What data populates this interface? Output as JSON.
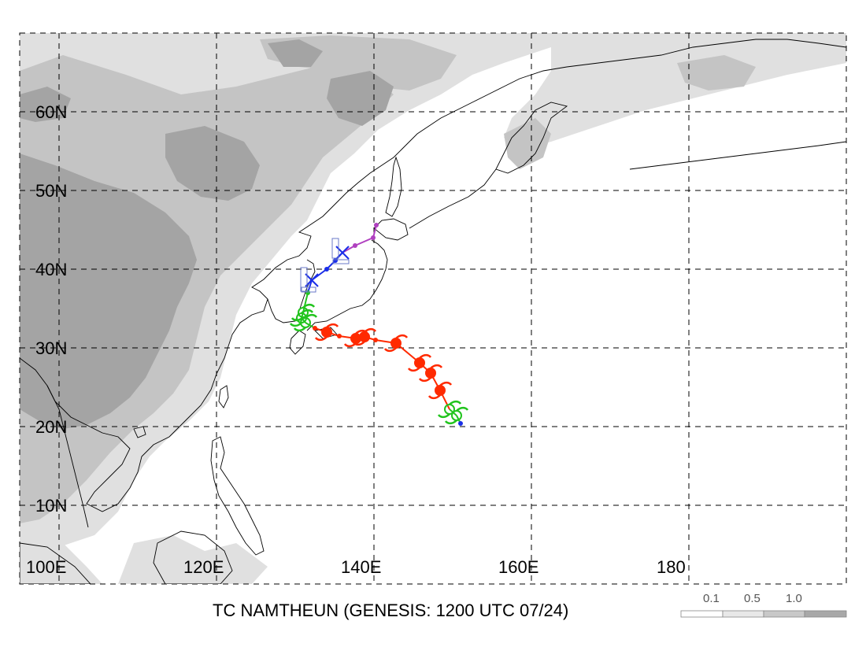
{
  "title": "TC NAMTHEUN (GENESIS: 1200 UTC 07/24)",
  "lat_labels": [
    "60N",
    "50N",
    "40N",
    "30N",
    "20N",
    "10N"
  ],
  "lon_labels": [
    "100E",
    "120E",
    "140E",
    "160E",
    "180"
  ],
  "legend": {
    "labels": [
      "0.1",
      "0.5",
      "1.0"
    ],
    "colors": [
      "#ffffff",
      "#e8e8e8",
      "#c8c8c8",
      "#a8a8a8"
    ]
  },
  "colors": {
    "track_blue": "#1a2ee8",
    "track_red": "#ff2a00",
    "track_green": "#22c41e",
    "track_purple": "#b040c0",
    "shade_light": "#e0e0e0",
    "shade_mid": "#c4c4c4",
    "shade_dark": "#a4a4a4"
  },
  "track": [
    {
      "lon": 151.0,
      "lat": 20.4,
      "color": "blue",
      "symbol": "dot"
    },
    {
      "lon": 150.5,
      "lat": 21.4,
      "color": "green",
      "symbol": "tropical-storm"
    },
    {
      "lon": 149.6,
      "lat": 22.2,
      "color": "green",
      "symbol": "tropical-storm"
    },
    {
      "lon": 148.4,
      "lat": 24.6,
      "color": "red",
      "symbol": "typhoon"
    },
    {
      "lon": 147.2,
      "lat": 26.8,
      "color": "red",
      "symbol": "typhoon"
    },
    {
      "lon": 145.8,
      "lat": 28.1,
      "color": "red",
      "symbol": "typhoon"
    },
    {
      "lon": 142.8,
      "lat": 30.6,
      "color": "red",
      "symbol": "typhoon"
    },
    {
      "lon": 140.2,
      "lat": 31.0,
      "color": "red",
      "symbol": "dot"
    },
    {
      "lon": 138.8,
      "lat": 31.4,
      "color": "red",
      "symbol": "typhoon"
    },
    {
      "lon": 137.7,
      "lat": 31.2,
      "color": "red",
      "symbol": "typhoon"
    },
    {
      "lon": 135.6,
      "lat": 31.5,
      "color": "red",
      "symbol": "dot"
    },
    {
      "lon": 134.0,
      "lat": 32.0,
      "color": "red",
      "symbol": "typhoon"
    },
    {
      "lon": 132.5,
      "lat": 32.5,
      "color": "red",
      "symbol": "dot"
    },
    {
      "lon": 131.3,
      "lat": 33.2,
      "color": "green",
      "symbol": "tropical-storm"
    },
    {
      "lon": 130.8,
      "lat": 33.8,
      "color": "green",
      "symbol": "tropical-storm"
    },
    {
      "lon": 131.0,
      "lat": 34.5,
      "color": "green",
      "symbol": "tropical-storm"
    },
    {
      "lon": 131.6,
      "lat": 37.0,
      "color": "green",
      "symbol": "dot"
    },
    {
      "lon": 132.1,
      "lat": 38.6,
      "color": "blue",
      "symbol": "x"
    },
    {
      "lon": 134.0,
      "lat": 40.0,
      "color": "blue",
      "symbol": "dot"
    },
    {
      "lon": 135.1,
      "lat": 41.1,
      "color": "blue",
      "symbol": "dot"
    },
    {
      "lon": 136.0,
      "lat": 42.1,
      "color": "blue",
      "symbol": "x"
    },
    {
      "lon": 137.6,
      "lat": 43.0,
      "color": "purple",
      "symbol": "dot"
    },
    {
      "lon": 139.9,
      "lat": 44.0,
      "color": "purple",
      "symbol": "dot"
    },
    {
      "lon": 140.3,
      "lat": 45.6,
      "color": "purple",
      "symbol": "dot"
    }
  ]
}
